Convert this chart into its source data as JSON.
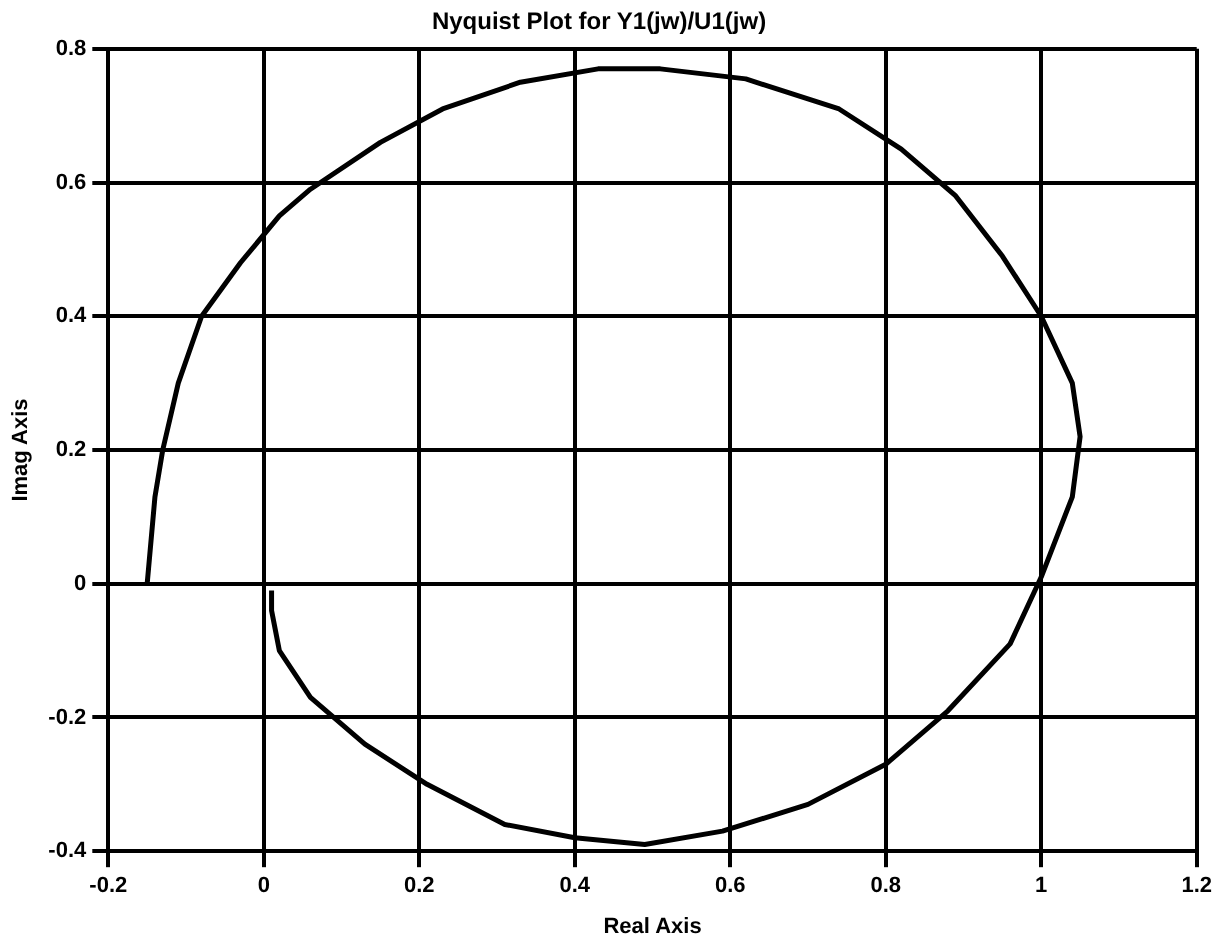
{
  "chart_data": {
    "type": "line",
    "title": "Nyquist Plot for Y1(jw)/U1(jw)",
    "xlabel": "Real Axis",
    "ylabel": "Imag Axis",
    "x": [
      -0.15,
      -0.14,
      -0.13,
      -0.11,
      -0.08,
      -0.03,
      0.02,
      0.06,
      0.15,
      0.23,
      0.33,
      0.43,
      0.51,
      0.62,
      0.74,
      0.82,
      0.89,
      0.95,
      1.0,
      1.04,
      1.05,
      1.04,
      1.0,
      0.96,
      0.88,
      0.8,
      0.7,
      0.59,
      0.49,
      0.4,
      0.31,
      0.21,
      0.13,
      0.06,
      0.02,
      0.01,
      0.01
    ],
    "series": [
      {
        "color": "#000000",
        "values": [
          0,
          0.13,
          0.2,
          0.3,
          0.4,
          0.48,
          0.55,
          0.59,
          0.66,
          0.71,
          0.75,
          0.77,
          0.77,
          0.755,
          0.71,
          0.65,
          0.58,
          0.49,
          0.4,
          0.3,
          0.22,
          0.13,
          0.01,
          -0.09,
          -0.19,
          -0.27,
          -0.33,
          -0.37,
          -0.39,
          -0.38,
          -0.36,
          -0.3,
          -0.24,
          -0.17,
          -0.1,
          -0.04,
          -0.01
        ]
      }
    ],
    "xlim": [
      -0.2,
      1.2
    ],
    "xticks": [
      -0.2,
      0,
      0.2,
      0.4,
      0.6,
      0.8,
      1,
      1.2
    ],
    "ylim": [
      -0.4,
      0.8
    ],
    "yticks": [
      -0.4,
      -0.2,
      0,
      0.2,
      0.4,
      0.6,
      0.8
    ],
    "grid": true,
    "legend": false,
    "marker": "none",
    "line_style": "solid"
  }
}
